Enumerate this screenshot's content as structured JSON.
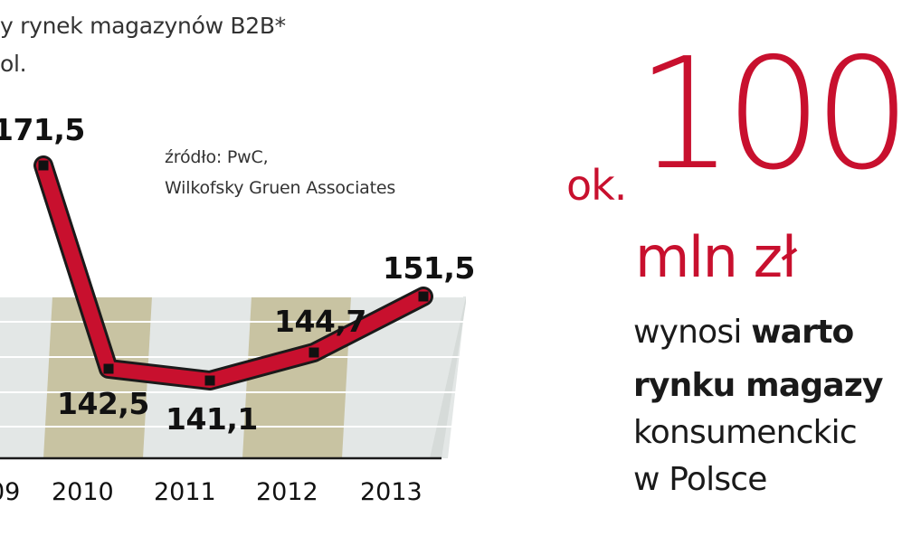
{
  "chart_data": {
    "type": "line",
    "title": "",
    "subtitle_lines": [
      "y rynek magazynów B2B*",
      "ol."
    ],
    "source_lines": [
      "źródło: PwC,",
      "Wilkofsky Gruen Associates"
    ],
    "categories": [
      "09",
      "2010",
      "2011",
      "2012",
      "2013"
    ],
    "series": [
      {
        "values": [
          171.5,
          142.5,
          141.1,
          144.7,
          151.5
        ]
      }
    ],
    "value_labels": [
      "171,5",
      "142,5",
      "141,1",
      "144,7",
      "151,5"
    ],
    "ylim": [
      134,
      174
    ],
    "grid": true,
    "colors": {
      "line": "#c8102e",
      "marker": "#111111",
      "band_light": "#e3e7e6",
      "band_khaki": "#c8c3a2"
    }
  },
  "callout": {
    "prefix": "ok.",
    "value": "100",
    "unit": "mln zł",
    "lines": [
      {
        "normal": "wynosi ",
        "bold": "warto"
      },
      {
        "normal": "",
        "bold": "rynku magazy"
      },
      {
        "normal": "konsumenckic",
        "bold": ""
      },
      {
        "normal": "w Polsce",
        "bold": ""
      }
    ],
    "accent_color": "#c8102e"
  }
}
